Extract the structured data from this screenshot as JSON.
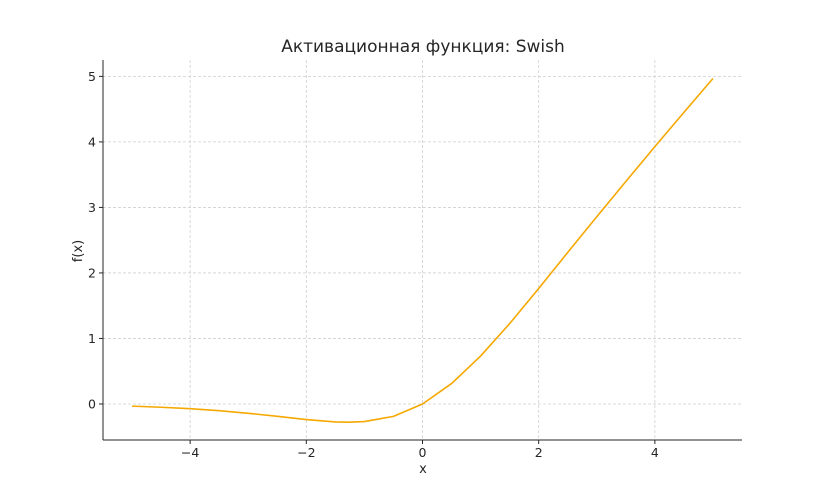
{
  "chart_data": {
    "type": "line",
    "title": "Активационная функция: Swish",
    "xlabel": "x",
    "ylabel": "f(x)",
    "xlim": [
      -5.5,
      5.5
    ],
    "ylim": [
      -0.55,
      5.25
    ],
    "grid": true,
    "x_ticks": [
      -4,
      -2,
      0,
      2,
      4
    ],
    "x_tick_labels": [
      "−4",
      "−2",
      "0",
      "2",
      "4"
    ],
    "y_ticks": [
      0,
      1,
      2,
      3,
      4,
      5
    ],
    "y_tick_labels": [
      "0",
      "1",
      "2",
      "3",
      "4",
      "5"
    ],
    "series": [
      {
        "color": "#f5a800",
        "x": [
          -5,
          -4.5,
          -4,
          -3.5,
          -3,
          -2.5,
          -2,
          -1.5,
          -1.278,
          -1,
          -0.5,
          0,
          0.5,
          1,
          1.5,
          2,
          2.5,
          3,
          3.5,
          4,
          4.5,
          5
        ],
        "y": [
          -0.033,
          -0.05,
          -0.072,
          -0.103,
          -0.142,
          -0.189,
          -0.238,
          -0.274,
          -0.278,
          -0.269,
          -0.189,
          0,
          0.311,
          0.731,
          1.226,
          1.762,
          2.313,
          2.858,
          3.396,
          3.928,
          4.45,
          4.967
        ]
      }
    ]
  }
}
